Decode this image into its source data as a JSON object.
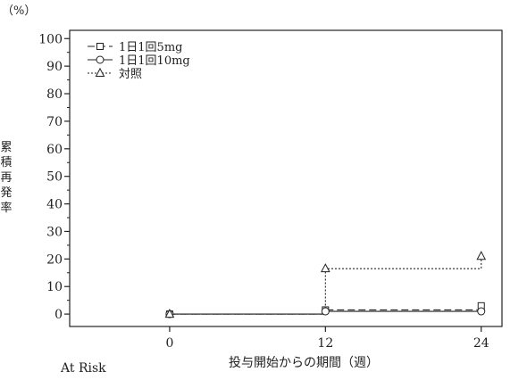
{
  "chart_data": {
    "type": "line",
    "unit_label": "（%）",
    "ylabel": "累積再発率",
    "xlabel": "投与開始からの期間（週）",
    "footer_label": "At Risk",
    "xlim": [
      -7.7,
      25.6
    ],
    "ylim": [
      -4.5,
      103
    ],
    "x_ticks": [
      0,
      12,
      24
    ],
    "y_ticks": [
      0,
      10,
      20,
      30,
      40,
      50,
      60,
      70,
      80,
      90,
      100
    ],
    "legend_position": "top-left",
    "series": [
      {
        "name": "1日1回5mg",
        "marker": "square",
        "line_style": "dashed",
        "x": [
          0,
          12,
          24
        ],
        "y": [
          0,
          1.5,
          3
        ]
      },
      {
        "name": "1日1回10mg",
        "marker": "circle",
        "line_style": "solid",
        "x": [
          0,
          12,
          24
        ],
        "y": [
          0,
          1,
          1
        ]
      },
      {
        "name": "対照",
        "marker": "triangle",
        "line_style": "dotted",
        "x": [
          0,
          12,
          24
        ],
        "y": [
          0,
          16.5,
          21
        ]
      }
    ]
  }
}
